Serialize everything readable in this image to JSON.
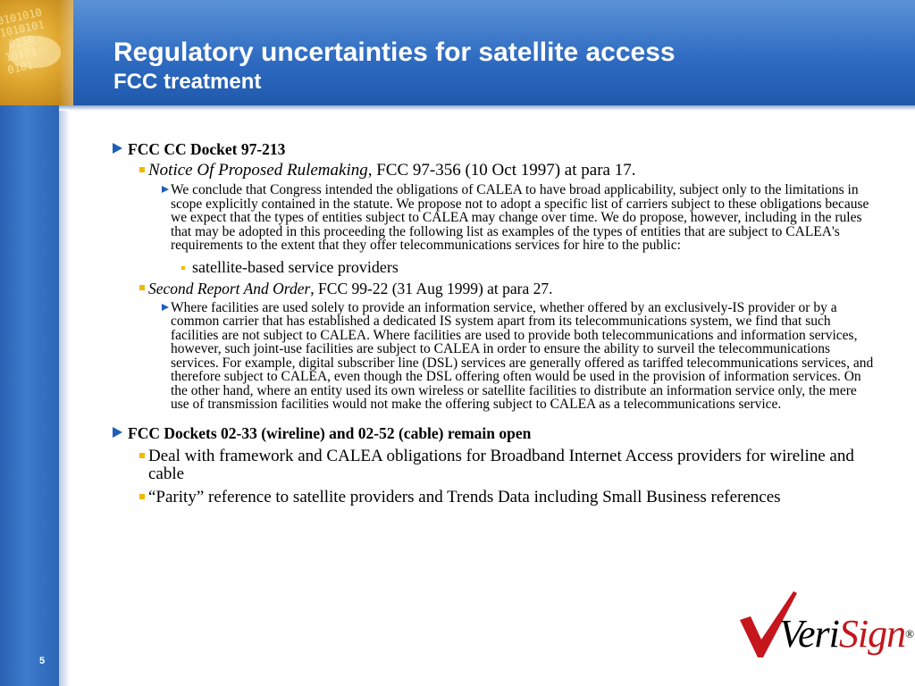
{
  "slide": {
    "title": "Regulatory uncertainties for satellite access",
    "subtitle": "FCC treatment",
    "page_number": "5",
    "corner_bits": "0101010\n1010101\n 0110\n10101\n0101"
  },
  "content": {
    "section1": {
      "heading": "FCC CC Docket 97-213",
      "item1": {
        "title_italic": "Notice Of  Proposed Rulemaking",
        "title_rest": ", FCC 97-356 (10 Oct 1997) at para 17.",
        "quote": "We conclude that Congress intended the obligations of  CALEA to have broad applicability, subject only to the limitations in scope explicitly contained in the statute.  We propose not to adopt a specific list of  carriers subject to these obligations because we expect that the types of  entities subject to CALEA may change over time.  We do propose, however,  including in the rules that may be adopted in this proceeding the following list as examples of  the types of  entities that are subject to CALEA's requirements to the extent that they offer telecommunications services for hire to the public:",
        "subpoint": "satellite-based service providers"
      },
      "item2": {
        "title_italic": "Second Report And Order",
        "title_rest": ", FCC 99-22 (31 Aug 1999) at para 27.",
        "quote": "Where facilities are used solely to provide an information service, whether offered by an exclusively-IS provider or by a common carrier that has established a dedicated IS system apart from its telecommunications system, we find that such facilities are not subject to CALEA.  Where facilities are used to provide both telecommunications and information services, however, such joint-use facilities are subject to CALEA in order to ensure the ability to surveil the telecommunications services.   For example, digital subscriber line (DSL) services are generally offered as tariffed telecommunications services, and therefore subject to CALEA, even though the DSL offering often would be used in the provision of  information services.  On the other hand, where an entity used its own wireless or satellite facilities to distribute an information service only, the mere use of  transmission facilities would not make the offering subject to CALEA as a telecommunications service."
      }
    },
    "section2": {
      "heading": "FCC Dockets 02-33 (wireline) and 02-52 (cable) remain open",
      "item1": "Deal with framework and CALEA obligations for Broadband Internet Access providers  for wireline and cable",
      "item2": "“Parity” reference to satellite providers and Trends Data including Small Business references"
    }
  },
  "logo": {
    "part1": "Veri",
    "part2": "Sign",
    "reg": "®"
  },
  "colors": {
    "header_blue": "#2f6cc2",
    "bullet_blue": "#1e5fb8",
    "bullet_gold": "#f2b800",
    "logo_red": "#c4161c"
  }
}
